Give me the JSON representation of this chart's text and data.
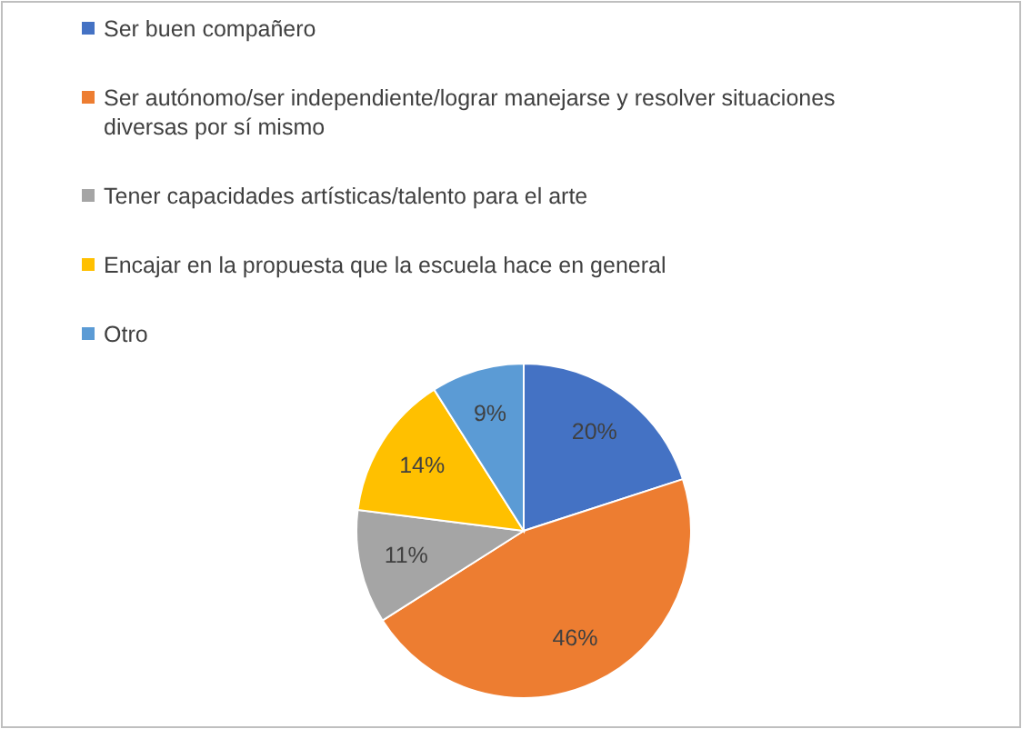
{
  "chart_data": {
    "type": "pie",
    "categories": [
      "Ser buen compañero",
      "Ser autónomo/ser independiente/lograr manejarse y resolver situaciones diversas por sí mismo",
      "Tener capacidades artísticas/talento para el arte",
      "Encajar en la propuesta que la escuela hace en general",
      "Otro"
    ],
    "values": [
      20,
      46,
      11,
      14,
      9
    ],
    "colors": [
      "#4472c4",
      "#ed7d31",
      "#a5a5a5",
      "#ffc000",
      "#5b9bd5"
    ],
    "value_labels": [
      "20%",
      "46%",
      "11%",
      "14%",
      "9%"
    ],
    "legend": "top"
  }
}
